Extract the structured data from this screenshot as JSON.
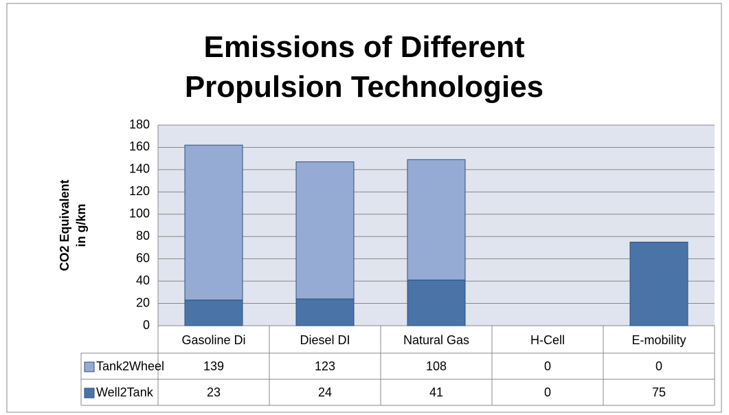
{
  "chart_data": {
    "type": "stacked_bar",
    "title": "Emissions of Different Propulsion Technologies",
    "ylabel": [
      "CO2  Equivalent",
      "in g/km"
    ],
    "categories": [
      "Gasoline Di",
      "Diesel DI",
      "Natural Gas",
      "H-Cell",
      "E-mobility"
    ],
    "series": [
      {
        "name": "Well2Tank",
        "color": "#4a73a8",
        "values": [
          23,
          24,
          41,
          0,
          75
        ]
      },
      {
        "name": "Tank2Wheel",
        "color": "#95abd4",
        "values": [
          139,
          123,
          108,
          0,
          0
        ]
      }
    ],
    "ylim": [
      0,
      180
    ],
    "yticks": [
      0,
      20,
      40,
      60,
      80,
      100,
      120,
      140,
      160,
      180
    ],
    "grid": true
  }
}
